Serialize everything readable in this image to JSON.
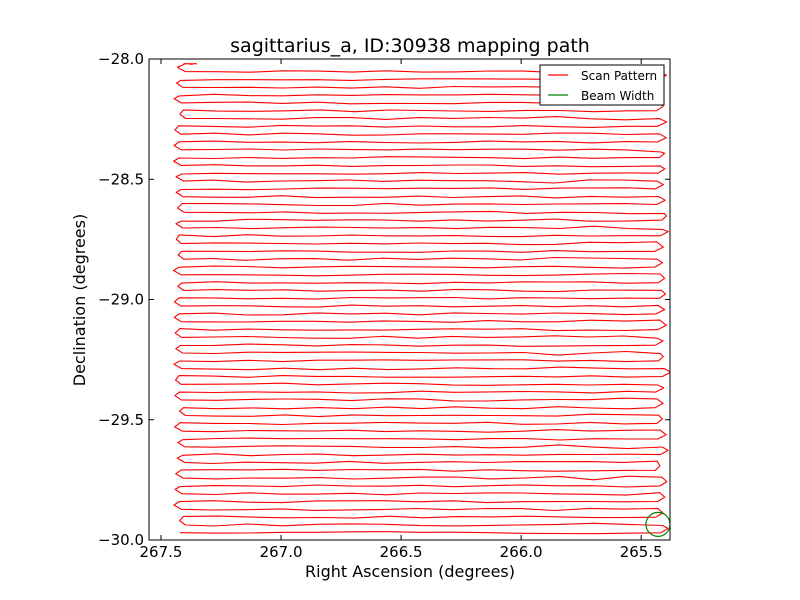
{
  "chart_data": {
    "type": "line",
    "title": "sagittarius_a, ID:30938 mapping path",
    "xlabel": "Right Ascension (degrees)",
    "ylabel": "Declination (degrees)",
    "xlim": [
      267.55,
      265.38
    ],
    "ylim": [
      -30.0,
      -28.0
    ],
    "x_reversed": true,
    "x_ticks": [
      267.5,
      267.0,
      266.5,
      266.0,
      265.5
    ],
    "x_tick_labels": [
      "267.5",
      "267.0",
      "266.5",
      "266.0",
      "265.5"
    ],
    "y_ticks": [
      -28.0,
      -28.5,
      -29.0,
      -29.5,
      -30.0
    ],
    "y_tick_labels": [
      "−28.0",
      "−28.5",
      "−29.0",
      "−29.5",
      "−30.0"
    ],
    "grid": false,
    "legend_position": "top-right",
    "series": [
      {
        "name": "Scan Pattern",
        "color": "#ff0000",
        "pattern": "boustrophedon raster",
        "ra_left_edge": 267.42,
        "ra_right_edge": 265.42,
        "dec_start": -28.02,
        "dec_end": -29.98,
        "leg_spacing_dec": 0.0325
      },
      {
        "name": "Beam Width",
        "color": "#008000",
        "center_ra": 265.43,
        "center_dec": -29.935,
        "radius_deg": 0.05
      }
    ]
  }
}
